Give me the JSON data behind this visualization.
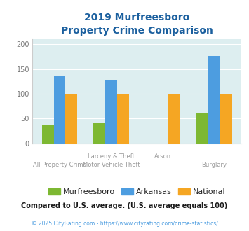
{
  "title_line1": "2019 Murfreesboro",
  "title_line2": "Property Crime Comparison",
  "murfreesboro": [
    38,
    40,
    0,
    60
  ],
  "arkansas": [
    135,
    128,
    0,
    176
  ],
  "national": [
    100,
    100,
    100,
    100
  ],
  "colors": {
    "murfreesboro": "#7db832",
    "arkansas": "#4d9de0",
    "national": "#f5a623"
  },
  "ylim": [
    0,
    210
  ],
  "yticks": [
    0,
    50,
    100,
    150,
    200
  ],
  "background_color": "#ddeef0",
  "title_color": "#1a5f9e",
  "footer_text": "Compared to U.S. average. (U.S. average equals 100)",
  "copyright_text": "© 2025 CityRating.com - https://www.cityrating.com/crime-statistics/",
  "legend_labels": [
    "Murfreesboro",
    "Arkansas",
    "National"
  ],
  "footer_color": "#1a1a1a",
  "copyright_color": "#4d9de0",
  "xtick_top": [
    "",
    "Larceny & Theft",
    "Arson",
    ""
  ],
  "xtick_bottom": [
    "All Property Crime",
    "Motor Vehicle Theft",
    "",
    "Burglary"
  ],
  "xtick_color": "#999999"
}
